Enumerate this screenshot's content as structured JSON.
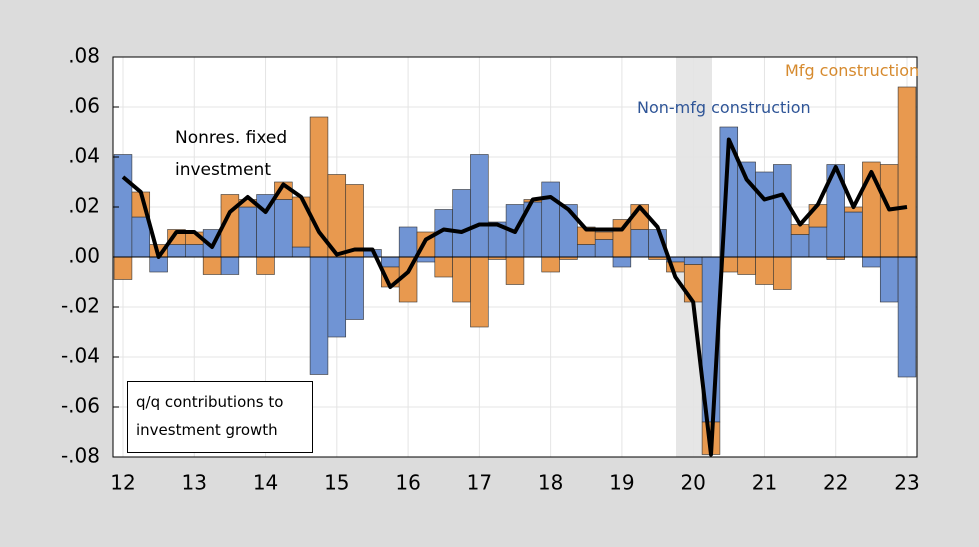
{
  "chart_data": {
    "type": "bar",
    "annotation": "q/q contributions to investment growth",
    "categories": [
      "12",
      null,
      null,
      null,
      "13",
      null,
      null,
      null,
      "14",
      null,
      null,
      null,
      "15",
      null,
      null,
      null,
      "16",
      null,
      null,
      null,
      "17",
      null,
      null,
      null,
      "18",
      null,
      null,
      null,
      "19",
      null,
      null,
      null,
      "20",
      null,
      null,
      null,
      "21",
      null,
      null,
      null,
      "22",
      null,
      null,
      null,
      "23"
    ],
    "series": [
      {
        "name": "Non-mfg construction",
        "type": "bar",
        "color": "#7094d4",
        "values": [
          0.041,
          0.016,
          -0.006,
          0.005,
          0.005,
          0.011,
          -0.007,
          0.02,
          0.025,
          0.023,
          0.004,
          -0.047,
          -0.032,
          -0.025,
          0.003,
          -0.004,
          0.012,
          -0.002,
          0.019,
          0.027,
          0.041,
          0.014,
          0.021,
          0.022,
          0.03,
          0.021,
          0.005,
          0.007,
          -0.004,
          0.011,
          0.011,
          -0.002,
          -0.003,
          -0.066,
          0.052,
          0.038,
          0.034,
          0.037,
          0.009,
          0.012,
          0.037,
          0.018,
          -0.004,
          -0.018,
          -0.048
        ]
      },
      {
        "name": "Mfg construction",
        "type": "bar",
        "color": "#e8994f",
        "values": [
          -0.009,
          0.01,
          0.005,
          0.006,
          0.005,
          -0.007,
          0.025,
          0.003,
          -0.007,
          0.007,
          0.02,
          0.056,
          0.033,
          0.029,
          0.0,
          -0.008,
          -0.018,
          0.01,
          -0.008,
          -0.018,
          -0.028,
          -0.001,
          -0.011,
          0.001,
          -0.006,
          -0.001,
          0.007,
          0.003,
          0.015,
          0.01,
          -0.001,
          -0.004,
          -0.015,
          -0.013,
          -0.006,
          -0.007,
          -0.011,
          -0.013,
          0.004,
          0.009,
          -0.001,
          0.002,
          0.038,
          0.037,
          0.068
        ]
      },
      {
        "name": "Nonres. fixed investment",
        "type": "line",
        "color": "#000000",
        "values": [
          0.032,
          0.026,
          0.0,
          0.01,
          0.01,
          0.004,
          0.018,
          0.024,
          0.018,
          0.029,
          0.024,
          0.01,
          0.001,
          0.003,
          0.003,
          -0.012,
          -0.006,
          0.007,
          0.011,
          0.01,
          0.013,
          0.013,
          0.01,
          0.023,
          0.024,
          0.019,
          0.011,
          0.011,
          0.011,
          0.02,
          0.012,
          -0.008,
          -0.018,
          -0.079,
          0.047,
          0.031,
          0.023,
          0.025,
          0.013,
          0.021,
          0.036,
          0.02,
          0.034,
          0.019,
          0.02
        ]
      }
    ],
    "ylim": [
      -0.08,
      0.08
    ],
    "yticks": [
      {
        "value": -0.08,
        "label": "-.08"
      },
      {
        "value": -0.06,
        "label": "-.06"
      },
      {
        "value": -0.04,
        "label": "-.04"
      },
      {
        "value": -0.02,
        "label": "-.02"
      },
      {
        "value": 0,
        "label": ".00"
      },
      {
        "value": 0.02,
        "label": ".02"
      },
      {
        "value": 0.04,
        "label": ".04"
      },
      {
        "value": 0.06,
        "label": ".06"
      },
      {
        "value": 0.08,
        "label": ".08"
      }
    ],
    "grid": true
  }
}
